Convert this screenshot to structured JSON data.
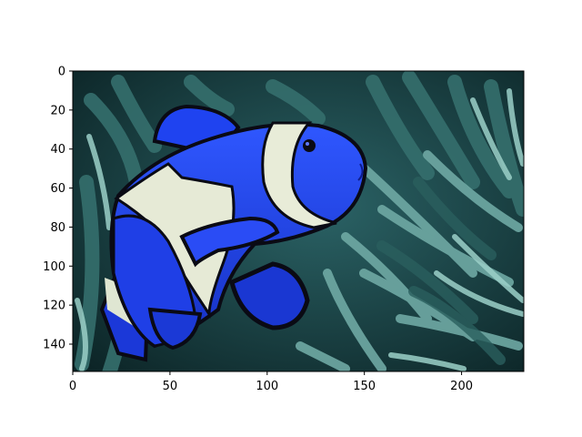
{
  "chart_data": {
    "type": "image",
    "title": "",
    "xlabel": "",
    "ylabel": "",
    "xlim": [
      0,
      232
    ],
    "ylim": [
      154,
      0
    ],
    "y_axis_inverted": true,
    "grid": false,
    "x_ticks": [
      0,
      50,
      100,
      150,
      200
    ],
    "x_tick_labels": [
      "0",
      "50",
      "100",
      "150",
      "200"
    ],
    "y_ticks": [
      0,
      20,
      40,
      60,
      80,
      100,
      120,
      140
    ],
    "y_tick_labels": [
      "0",
      "20",
      "40",
      "60",
      "80",
      "100",
      "120",
      "140"
    ],
    "image_subject": "clownfish-in-sea-anemone",
    "colors": {
      "fish_body": "#1f3fe0",
      "fish_stripe": "#e8ecd8",
      "fish_outline": "#0a0a14",
      "anemone_tentacle": "#4f8f8a",
      "anemone_dark": "#1d4a4c",
      "background": "#0e2a2c"
    }
  }
}
